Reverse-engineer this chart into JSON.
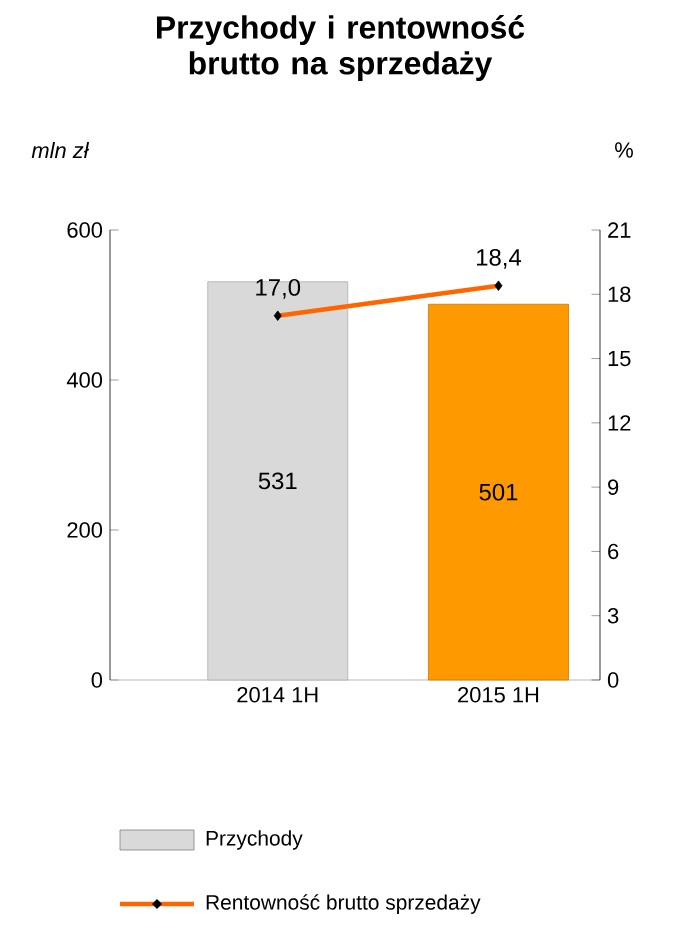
{
  "chart_data": {
    "type": "bar",
    "title": "Przychody i rentowność brutto na sprzedaży",
    "ylabel": "mln zł",
    "y2label": "%",
    "categories": [
      "2014 1H",
      "2015 1H"
    ],
    "series": [
      {
        "name": "Przychody",
        "colors": [
          "#d9d9d9",
          "#ff9900"
        ],
        "values": [
          531,
          501
        ],
        "value_labels": [
          "531",
          "501"
        ]
      },
      {
        "name": "Rentowność brutto sprzedaży",
        "type": "line",
        "axis": "y2",
        "color": "#ff6600",
        "values": [
          17.0,
          18.4
        ],
        "value_labels": [
          "17,0",
          "18,4"
        ],
        "marker": "diamond"
      }
    ],
    "ylim": [
      0,
      600
    ],
    "yticks": [
      0,
      200,
      400,
      600
    ],
    "y2lim": [
      0,
      21
    ],
    "y2ticks": [
      0,
      3,
      6,
      9,
      12,
      15,
      18,
      21
    ],
    "legend": "bottom",
    "grid": false
  }
}
